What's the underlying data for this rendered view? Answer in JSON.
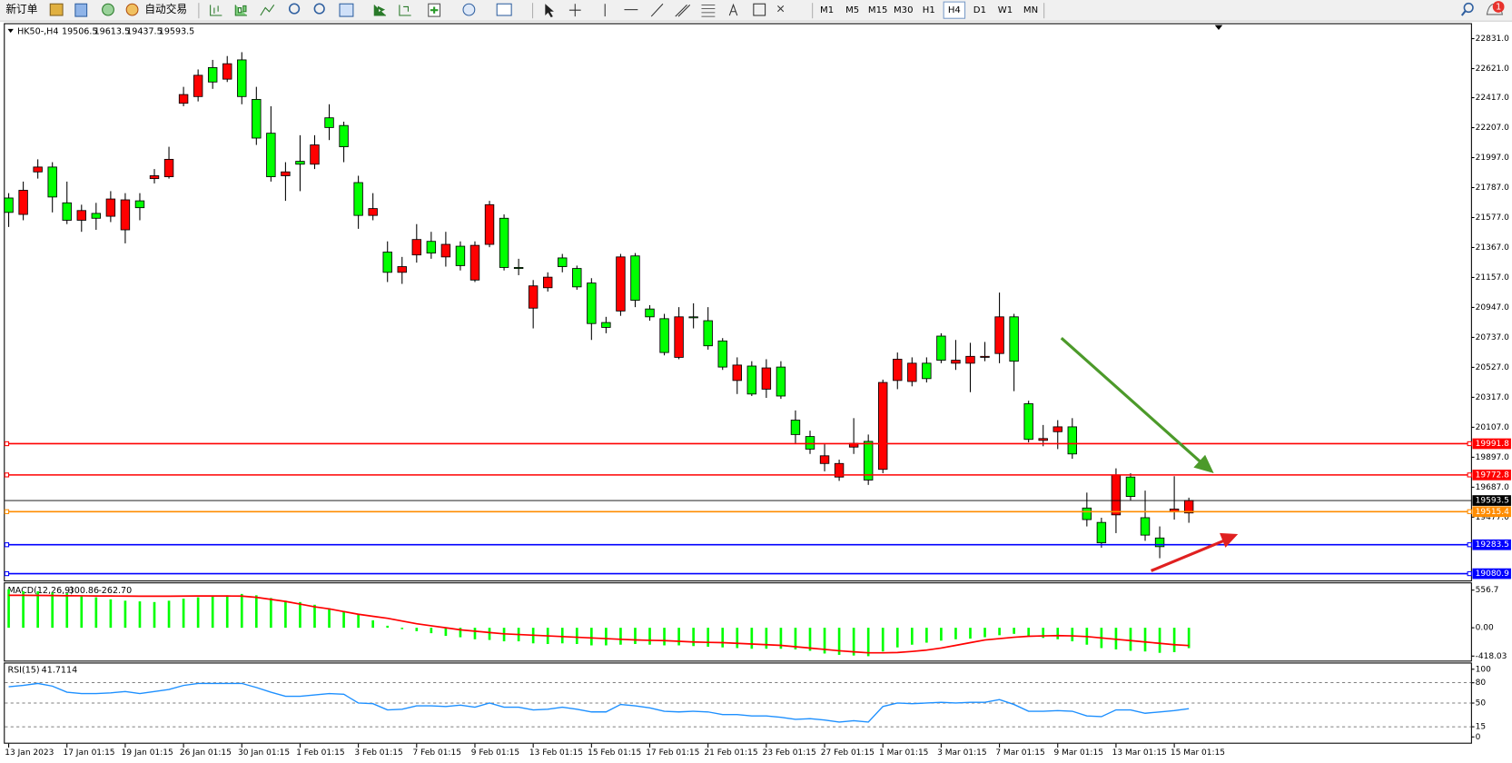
{
  "toolbar": {
    "new_order": "新订单",
    "auto_trade": "自动交易",
    "timeframes": [
      "M1",
      "M5",
      "M15",
      "M30",
      "H1",
      "H4",
      "D1",
      "W1",
      "MN"
    ],
    "notifications": 1
  },
  "chart_data": [
    {
      "type": "candlestick",
      "title": "HK50-,H4",
      "up_color": "#ff0000",
      "down_color": "#00ff00",
      "ylim": [
        19040,
        22919
      ],
      "yticks": [
        {
          "value": 22831,
          "label": "22831.0"
        },
        {
          "value": 22621,
          "label": "22621.0"
        },
        {
          "value": 22417,
          "label": "22417.0"
        },
        {
          "value": 22207,
          "label": "22207.0"
        },
        {
          "value": 21997,
          "label": "21997.0"
        },
        {
          "value": 21787,
          "label": "21787.0"
        },
        {
          "value": 21577,
          "label": "21577.0"
        },
        {
          "value": 21367,
          "label": "21367.0"
        },
        {
          "value": 21157,
          "label": "21157.0"
        },
        {
          "value": 20947,
          "label": "20947.0"
        },
        {
          "value": 20737,
          "label": "20737.0"
        },
        {
          "value": 20527,
          "label": "20527.0"
        },
        {
          "value": 20317,
          "label": "20317.0"
        },
        {
          "value": 20107,
          "label": "20107.0"
        },
        {
          "value": 19897,
          "label": "19897.0"
        },
        {
          "value": 19687,
          "label": "19687.0"
        },
        {
          "value": 19477,
          "label": "19477.0"
        }
      ],
      "levels": [
        {
          "value": 19991.8,
          "color": "#ff0000"
        },
        {
          "value": 19772.8,
          "color": "#ff0000"
        },
        {
          "value": 19515.4,
          "color": "#ff8c00"
        },
        {
          "value": 19283.5,
          "color": "#0000ff"
        },
        {
          "value": 19080.9,
          "color": "#0000ff"
        }
      ],
      "categories": [
        "13 Jan 2023",
        null,
        null,
        null,
        "17 Jan 01:15",
        null,
        null,
        null,
        "19 Jan 01:15",
        null,
        null,
        null,
        "26 Jan 01:15",
        null,
        null,
        null,
        "30 Jan 01:15",
        null,
        null,
        null,
        "1 Feb 01:15",
        null,
        null,
        null,
        "3 Feb 01:15",
        null,
        null,
        null,
        "7 Feb 01:15",
        null,
        null,
        null,
        "9 Feb 01:15",
        null,
        null,
        null,
        "13 Feb 01:15",
        null,
        null,
        null,
        "15 Feb 01:15",
        null,
        null,
        null,
        "17 Feb 01:15",
        null,
        null,
        null,
        "21 Feb 01:15",
        null,
        null,
        null,
        "23 Feb 01:15",
        null,
        null,
        null,
        "27 Feb 01:15",
        null,
        null,
        null,
        "1 Mar 01:15",
        null,
        null,
        null,
        "3 Mar 01:15",
        null,
        null,
        null,
        "7 Mar 01:15",
        null,
        null,
        null,
        "9 Mar 01:15",
        null,
        null,
        null,
        "13 Mar 01:15",
        null,
        null,
        null,
        "15 Mar 01:15",
        null
      ],
      "ohlc": [
        [
          21714,
          21748,
          21511,
          21613
        ],
        [
          21599,
          21829,
          21558,
          21768
        ],
        [
          21897,
          21985,
          21850,
          21931
        ],
        [
          21931,
          21965,
          21613,
          21721
        ],
        [
          21680,
          21829,
          21531,
          21558
        ],
        [
          21558,
          21667,
          21477,
          21626
        ],
        [
          21606,
          21680,
          21491,
          21572
        ],
        [
          21586,
          21762,
          21545,
          21707
        ],
        [
          21491,
          21748,
          21396,
          21701
        ],
        [
          21694,
          21748,
          21558,
          21646
        ],
        [
          21850,
          21917,
          21816,
          21870
        ],
        [
          21863,
          22073,
          21850,
          21985
        ],
        [
          22378,
          22493,
          22357,
          22439
        ],
        [
          22425,
          22615,
          22391,
          22574
        ],
        [
          22628,
          22682,
          22479,
          22527
        ],
        [
          22547,
          22709,
          22527,
          22655
        ],
        [
          22682,
          22736,
          22371,
          22425
        ],
        [
          22405,
          22493,
          22086,
          22134
        ],
        [
          22168,
          22357,
          21829,
          21863
        ],
        [
          21870,
          21965,
          21694,
          21897
        ],
        [
          21971,
          22154,
          21762,
          21951
        ],
        [
          21951,
          22154,
          21917,
          22086
        ],
        [
          22276,
          22371,
          22120,
          22208
        ],
        [
          22222,
          22249,
          21965,
          22073
        ],
        [
          21822,
          21870,
          21498,
          21592
        ],
        [
          21592,
          21748,
          21558,
          21640
        ],
        [
          21335,
          21410,
          21125,
          21193
        ],
        [
          21193,
          21301,
          21112,
          21233
        ],
        [
          21315,
          21531,
          21261,
          21423
        ],
        [
          21410,
          21477,
          21288,
          21328
        ],
        [
          21301,
          21477,
          21233,
          21389
        ],
        [
          21376,
          21410,
          21206,
          21240
        ],
        [
          21139,
          21410,
          21125,
          21382
        ],
        [
          21389,
          21694,
          21369,
          21667
        ],
        [
          21572,
          21599,
          21206,
          21227
        ],
        [
          21227,
          21288,
          21173,
          21220
        ],
        [
          20942,
          21139,
          20800,
          21098
        ],
        [
          21085,
          21193,
          21058,
          21159
        ],
        [
          21294,
          21322,
          21193,
          21233
        ],
        [
          21220,
          21240,
          21071,
          21091
        ],
        [
          21118,
          21152,
          20719,
          20834
        ],
        [
          20841,
          20881,
          20766,
          20807
        ],
        [
          20922,
          21322,
          20888,
          21301
        ],
        [
          21308,
          21328,
          20949,
          20997
        ],
        [
          20936,
          20963,
          20854,
          20881
        ],
        [
          20868,
          20902,
          20611,
          20631
        ],
        [
          20597,
          20949,
          20584,
          20881
        ],
        [
          20881,
          20976,
          20800,
          20875
        ],
        [
          20854,
          20949,
          20651,
          20678
        ],
        [
          20712,
          20732,
          20509,
          20529
        ],
        [
          20435,
          20597,
          20340,
          20543
        ],
        [
          20536,
          20570,
          20326,
          20340
        ],
        [
          20374,
          20584,
          20313,
          20523
        ],
        [
          20529,
          20570,
          20306,
          20326
        ],
        [
          20157,
          20225,
          19988,
          20056
        ],
        [
          20042,
          20083,
          19920,
          19954
        ],
        [
          19853,
          19988,
          19798,
          19907
        ],
        [
          19758,
          19880,
          19731,
          19853
        ],
        [
          19968,
          20171,
          19920,
          19995
        ],
        [
          20008,
          20056,
          19703,
          19737
        ],
        [
          19812,
          20441,
          19785,
          20421
        ],
        [
          20435,
          20631,
          20374,
          20584
        ],
        [
          20428,
          20597,
          20394,
          20556
        ],
        [
          20556,
          20597,
          20421,
          20448
        ],
        [
          20746,
          20766,
          20556,
          20577
        ],
        [
          20556,
          20719,
          20509,
          20577
        ],
        [
          20556,
          20699,
          20353,
          20604
        ],
        [
          20597,
          20705,
          20570,
          20604
        ],
        [
          20624,
          21051,
          20556,
          20881
        ],
        [
          20881,
          20902,
          20360,
          20570
        ],
        [
          20272,
          20293,
          20001,
          20022
        ],
        [
          20015,
          20123,
          19974,
          20028
        ],
        [
          20076,
          20157,
          19954,
          20110
        ],
        [
          20110,
          20171,
          19886,
          19920
        ],
        [
          19541,
          19649,
          19412,
          19460
        ],
        [
          19440,
          19473,
          19263,
          19297
        ],
        [
          19493,
          19819,
          19365,
          19771
        ],
        [
          19758,
          19785,
          19595,
          19622
        ],
        [
          19473,
          19663,
          19311,
          19351
        ],
        [
          19331,
          19412,
          19189,
          19270
        ],
        [
          19514,
          19764,
          19460,
          19534
        ],
        [
          19506.5,
          19613.5,
          19437.5,
          19593.5
        ]
      ]
    },
    {
      "type": "macd",
      "title": "MACD(12,26,9)",
      "readout": [
        -300.86,
        {
          "value": -262.7,
          "label": "-262.70"
        }
      ],
      "ylim": [
        -471,
        642
      ],
      "yticks": [
        556.7,
        {
          "value": 0,
          "label": "0.00"
        },
        -418.03
      ],
      "histogram": {
        "color": "#00ff00",
        "values": [
          570,
          540,
          540,
          520,
          510,
          470,
          450,
          420,
          400,
          390,
          380,
          400,
          430,
          450,
          470,
          480,
          500,
          480,
          440,
          400,
          380,
          340,
          290,
          250,
          190,
          110,
          30,
          -20,
          -50,
          -80,
          -120,
          -140,
          -170,
          -180,
          -200,
          -200,
          -230,
          -240,
          -230,
          -240,
          -260,
          -260,
          -250,
          -240,
          -250,
          -260,
          -260,
          -270,
          -280,
          -290,
          -300,
          -310,
          -310,
          -310,
          -320,
          -340,
          -380,
          -400,
          -410,
          -420,
          -350,
          -290,
          -250,
          -220,
          -190,
          -170,
          -160,
          -140,
          -110,
          -90,
          -120,
          -150,
          -170,
          -200,
          -250,
          -300,
          -320,
          -340,
          -350,
          -370,
          -360,
          -301
        ]
      },
      "signal": {
        "color": "#ff0000",
        "values": [
          480,
          480,
          478,
          476,
          474,
          472,
          470,
          470,
          468,
          466,
          466,
          466,
          468,
          470,
          470,
          470,
          468,
          450,
          420,
          390,
          350,
          310,
          280,
          240,
          200,
          170,
          140,
          100,
          60,
          30,
          0,
          -30,
          -50,
          -70,
          -90,
          -100,
          -110,
          -120,
          -130,
          -140,
          -150,
          -160,
          -170,
          -180,
          -185,
          -190,
          -200,
          -210,
          -215,
          -220,
          -230,
          -240,
          -250,
          -260,
          -280,
          -300,
          -320,
          -340,
          -355,
          -370,
          -370,
          -365,
          -350,
          -330,
          -300,
          -260,
          -220,
          -180,
          -160,
          -140,
          -125,
          -120,
          -115,
          -120,
          -130,
          -150,
          -170,
          -190,
          -210,
          -230,
          -250,
          -263
        ]
      }
    },
    {
      "type": "line",
      "title": "RSI(15)",
      "readout": 41.7114,
      "color": "#1e90ff",
      "ylim": [
        -10,
        107
      ],
      "yticks": [
        100,
        80,
        50,
        15,
        0
      ],
      "values": [
        74,
        76,
        79,
        75,
        66,
        64,
        64,
        65,
        67,
        64,
        67,
        70,
        76,
        79,
        79,
        79,
        79,
        73,
        66,
        60,
        60,
        62,
        64,
        63,
        50,
        49,
        40,
        41,
        46,
        46,
        45,
        47,
        44,
        50,
        44,
        44,
        40,
        41,
        44,
        41,
        37,
        37,
        48,
        46,
        43,
        38,
        37,
        38,
        37,
        33,
        33,
        31,
        31,
        29,
        26,
        27,
        25,
        22,
        24,
        22,
        45,
        50,
        49,
        50,
        51,
        50,
        51,
        51,
        55,
        48,
        38,
        38,
        39,
        38,
        31,
        30,
        40,
        40,
        35,
        37,
        39,
        41.7
      ]
    }
  ]
}
